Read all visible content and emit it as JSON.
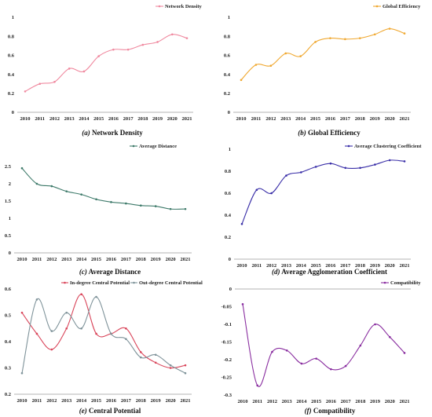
{
  "chart_data": [
    {
      "id": "a",
      "type": "line",
      "caption_letter": "(a)",
      "caption_text": " Network Density",
      "categories": [
        "2010",
        "2011",
        "2012",
        "2013",
        "2014",
        "2015",
        "2016",
        "2017",
        "2018",
        "2019",
        "2020",
        "2021"
      ],
      "series": [
        {
          "name": "Network Density",
          "color": "#f08aa0",
          "values": [
            0.22,
            0.3,
            0.32,
            0.46,
            0.43,
            0.59,
            0.66,
            0.66,
            0.71,
            0.74,
            0.82,
            0.78
          ]
        }
      ],
      "ylim": [
        0,
        1
      ],
      "yticks": [
        0,
        0.2,
        0.4,
        0.6,
        0.8,
        1
      ],
      "ytick_labels": [
        "0",
        "0.2",
        "0.4",
        "0.6",
        "0.8",
        "1"
      ],
      "legend": "top-right"
    },
    {
      "id": "b",
      "type": "line",
      "caption_letter": "(b)",
      "caption_text": " Global Efficiency",
      "categories": [
        "2010",
        "2011",
        "2012",
        "2013",
        "2014",
        "2015",
        "2016",
        "2017",
        "2018",
        "2019",
        "2020",
        "2021"
      ],
      "series": [
        {
          "name": "Global Efficiency",
          "color": "#f0a830",
          "values": [
            0.34,
            0.5,
            0.49,
            0.62,
            0.59,
            0.74,
            0.78,
            0.77,
            0.78,
            0.82,
            0.88,
            0.83
          ]
        }
      ],
      "ylim": [
        0,
        1
      ],
      "yticks": [
        0,
        0.2,
        0.4,
        0.6,
        0.8,
        1
      ],
      "ytick_labels": [
        "0",
        "0.2",
        "0.4",
        "0.6",
        "0.8",
        "1"
      ],
      "legend": "top-right"
    },
    {
      "id": "c",
      "type": "line",
      "caption_letter": "(c)",
      "caption_text": " Average Distance",
      "categories": [
        "2010",
        "2011",
        "2012",
        "2013",
        "2014",
        "2015",
        "2016",
        "2017",
        "2018",
        "2019",
        "2020",
        "2021"
      ],
      "series": [
        {
          "name": "Average Distance",
          "color": "#3e7a6a",
          "values": [
            2.45,
            2.0,
            1.93,
            1.78,
            1.69,
            1.55,
            1.47,
            1.43,
            1.37,
            1.35,
            1.27,
            1.27
          ]
        }
      ],
      "ylim": [
        0,
        3
      ],
      "yticks": [
        0,
        0.5,
        1,
        1.5,
        2,
        2.5
      ],
      "ytick_labels": [
        "0",
        "0.5",
        "1",
        "1.5",
        "2",
        "2.5"
      ],
      "legend": "top-right"
    },
    {
      "id": "d",
      "type": "line",
      "caption_letter": "(d)",
      "caption_text": " Average Agglomeration Coefficient",
      "categories": [
        "2010",
        "2011",
        "2012",
        "2013",
        "2014",
        "2015",
        "2016",
        "2017",
        "2018",
        "2019",
        "2020",
        "2021"
      ],
      "series": [
        {
          "name": "Average Clustering Coefficient",
          "color": "#3a2fa8",
          "values": [
            0.32,
            0.63,
            0.6,
            0.76,
            0.79,
            0.84,
            0.87,
            0.83,
            0.83,
            0.86,
            0.9,
            0.89
          ]
        }
      ],
      "ylim": [
        0,
        1
      ],
      "yticks": [
        0,
        0.2,
        0.4,
        0.6,
        0.8,
        1
      ],
      "ytick_labels": [
        "0",
        "0.2",
        "0.4",
        "0.6",
        "0.8",
        "1"
      ],
      "legend": "top-right"
    },
    {
      "id": "e",
      "type": "line",
      "caption_letter": "(e)",
      "caption_text": " Central Potential",
      "categories": [
        "2010",
        "2011",
        "2012",
        "2013",
        "2014",
        "2015",
        "2016",
        "2017",
        "2018",
        "2019",
        "2020",
        "2021"
      ],
      "series": [
        {
          "name": "In-degree Central Potential",
          "color": "#d9455a",
          "values": [
            0.51,
            0.43,
            0.37,
            0.45,
            0.58,
            0.43,
            0.43,
            0.45,
            0.36,
            0.32,
            0.3,
            0.31
          ]
        },
        {
          "name": "Out-degree Central Potential",
          "color": "#7f939a",
          "values": [
            0.28,
            0.56,
            0.44,
            0.51,
            0.45,
            0.57,
            0.43,
            0.41,
            0.34,
            0.35,
            0.31,
            0.28
          ]
        }
      ],
      "ylim": [
        0.2,
        0.6
      ],
      "yticks": [
        0.2,
        0.3,
        0.4,
        0.5,
        0.6
      ],
      "ytick_labels": [
        "0.2",
        "0.3",
        "0.4",
        "0.5",
        "0.6"
      ],
      "legend": "top"
    },
    {
      "id": "f",
      "type": "line",
      "caption_letter": "(f)",
      "caption_text": " Compatibility",
      "categories": [
        "2010",
        "2011",
        "2012",
        "2013",
        "2014",
        "2015",
        "2016",
        "2017",
        "2018",
        "2019",
        "2020",
        "2021"
      ],
      "series": [
        {
          "name": "Compatibility",
          "color": "#8a2fa0",
          "values": [
            -0.043,
            -0.273,
            -0.178,
            -0.174,
            -0.211,
            -0.197,
            -0.227,
            -0.218,
            -0.16,
            -0.1,
            -0.136,
            -0.181
          ]
        }
      ],
      "ylim": [
        -0.3,
        0
      ],
      "yticks": [
        -0.3,
        -0.25,
        -0.2,
        -0.15,
        -0.1,
        -0.05,
        0
      ],
      "ytick_labels": [
        "-0.3",
        "-0.25",
        "-0.2",
        "-0.15",
        "-0.1",
        "-0.05",
        "0"
      ],
      "legend": "top-right"
    }
  ]
}
